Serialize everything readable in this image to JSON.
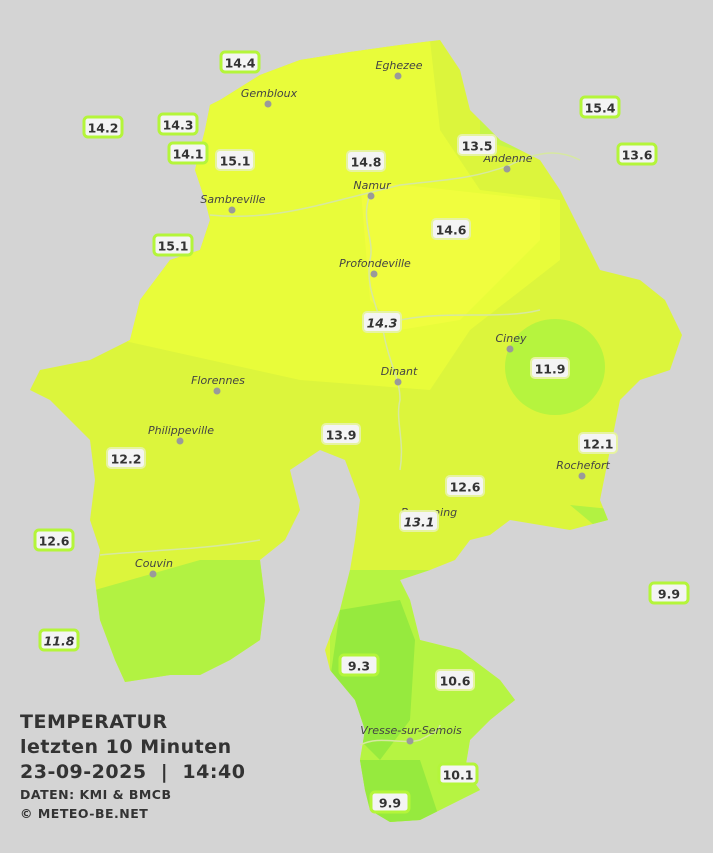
{
  "title": {
    "lines": [
      "TEMPERATUR",
      "letzten 10 Minuten",
      "23-09-2025  |  14:40"
    ]
  },
  "credits": [
    "DATEN: KMI & BMCB",
    "© METEO-BE.NET"
  ],
  "cities": [
    "Eghezee",
    "Gembloux",
    "Andenne",
    "Namur",
    "Sambreville",
    "Profondeville",
    "Ciney",
    "Dinant",
    "Florennes",
    "Philippeville",
    "Rochefort",
    "Beauraing",
    "Couvin",
    "Vresse-sur-Semois"
  ],
  "stations": [
    14.4,
    14.2,
    14.3,
    14.1,
    15.1,
    14.8,
    13.5,
    15.4,
    13.6,
    15.1,
    14.6,
    14.3,
    11.9,
    13.9,
    12.1,
    12.2,
    12.6,
    13.1,
    12.6,
    9.9,
    11.8,
    9.3,
    10.6,
    10.1,
    9.9
  ]
}
